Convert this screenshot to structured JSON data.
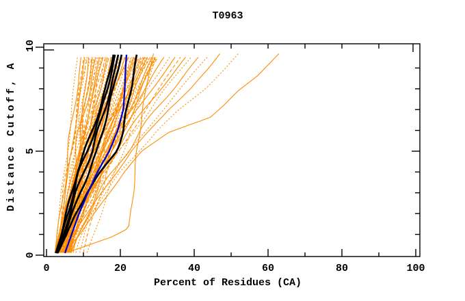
{
  "page": {
    "background": "#FFFFFF"
  },
  "chart_data": {
    "type": "line",
    "title": "T0963",
    "xlabel": "Percent of Residues (CA)",
    "ylabel": "Distance Cutoff, A",
    "xlim": [
      0,
      101.5
    ],
    "ylim": [
      0,
      10.2
    ],
    "grid": false,
    "legend": "none",
    "x_ticks_major": [
      0,
      20,
      40,
      60,
      80,
      100
    ],
    "x_ticks_minor": [
      10,
      30,
      50,
      70,
      90
    ],
    "x_tick_labels": [
      "0",
      "20",
      "40",
      "60",
      "80",
      "100"
    ],
    "y_ticks_major": [
      0,
      5,
      10
    ],
    "y_ticks_minor": [
      1,
      2,
      3,
      4,
      6,
      7,
      8,
      9
    ],
    "y_tick_labels": [
      "0",
      "5",
      "10"
    ],
    "colors": {
      "model_curves": "#FF8C00",
      "highlight_curves": "#000000",
      "reference_curve": "#0000CC",
      "axis": "#000000"
    },
    "series_groups": {
      "orange_models": {
        "color": "#FF8C00",
        "stroke_width": 1.1,
        "note": "many thin model curves, mix of solid and dashed; x percent of CA residues within distance cutoff y",
        "band_format": [
          "x_at_bottom",
          "x_at_top",
          "shape_exponent",
          "wiggle_amplitude",
          "dash_style"
        ],
        "band": [
          [
            2.4,
            10.5,
            0.9,
            0.15,
            0
          ],
          [
            3.8,
            12.9,
            0.97,
            0.33,
            1
          ],
          [
            5.3,
            15.3,
            1.04,
            0.51,
            2
          ],
          [
            6.7,
            17.7,
            1.11,
            0.69,
            0
          ],
          [
            3.6,
            20.1,
            1.18,
            0.15,
            1
          ],
          [
            5.0,
            22.5,
            1.25,
            0.33,
            2
          ],
          [
            6.4,
            24.9,
            1.32,
            0.51,
            0
          ],
          [
            3.3,
            27.3,
            0.9,
            0.69,
            1
          ],
          [
            4.7,
            29.7,
            0.97,
            0.15,
            2
          ],
          [
            6.1,
            11.5,
            1.04,
            0.33,
            0
          ],
          [
            3.0,
            13.9,
            1.11,
            0.51,
            1
          ],
          [
            4.4,
            16.3,
            1.18,
            0.69,
            2
          ],
          [
            5.9,
            18.7,
            1.25,
            0.15,
            0
          ],
          [
            2.7,
            21.1,
            1.32,
            0.33,
            1
          ],
          [
            4.1,
            23.5,
            0.9,
            0.51,
            2
          ],
          [
            5.6,
            25.9,
            0.97,
            0.69,
            0
          ],
          [
            2.4,
            28.3,
            1.04,
            0.15,
            1
          ],
          [
            3.8,
            30.7,
            1.11,
            0.33,
            2
          ],
          [
            5.3,
            12.6,
            1.18,
            0.51,
            0
          ],
          [
            6.7,
            14.9,
            1.25,
            0.69,
            1
          ],
          [
            3.6,
            17.3,
            1.32,
            0.15,
            2
          ],
          [
            5.0,
            19.7,
            0.9,
            0.33,
            0
          ],
          [
            6.4,
            22.1,
            0.97,
            0.51,
            1
          ],
          [
            3.3,
            24.5,
            1.04,
            0.69,
            2
          ],
          [
            4.7,
            26.9,
            1.11,
            0.15,
            0
          ],
          [
            6.1,
            29.3,
            1.18,
            0.33,
            1
          ],
          [
            3.0,
            11.2,
            1.25,
            0.51,
            2
          ],
          [
            4.4,
            13.6,
            1.32,
            0.69,
            0
          ],
          [
            5.9,
            16.0,
            0.9,
            0.15,
            1
          ],
          [
            2.7,
            18.4,
            0.97,
            0.33,
            2
          ],
          [
            4.1,
            20.8,
            1.04,
            0.51,
            0
          ],
          [
            5.6,
            23.2,
            1.11,
            0.69,
            1
          ],
          [
            2.4,
            25.6,
            1.18,
            0.15,
            2
          ],
          [
            3.8,
            28.0,
            1.25,
            0.33,
            0
          ],
          [
            5.3,
            30.4,
            1.32,
            0.51,
            1
          ],
          [
            6.7,
            12.2,
            0.9,
            0.69,
            2
          ],
          [
            3.6,
            14.6,
            0.97,
            0.15,
            0
          ],
          [
            5.0,
            17.0,
            1.04,
            0.33,
            1
          ],
          [
            6.4,
            19.4,
            1.11,
            0.51,
            2
          ],
          [
            3.3,
            21.8,
            1.18,
            0.69,
            0
          ],
          [
            4.7,
            24.2,
            1.25,
            0.15,
            1
          ],
          [
            6.1,
            26.6,
            1.32,
            0.33,
            2
          ],
          [
            3.0,
            29.0,
            0.9,
            0.51,
            0
          ],
          [
            4.4,
            10.8,
            0.97,
            0.69,
            1
          ],
          [
            5.9,
            13.2,
            1.04,
            0.15,
            2
          ],
          [
            2.7,
            15.6,
            1.11,
            0.33,
            0
          ],
          [
            4.1,
            18.0,
            1.18,
            0.51,
            1
          ],
          [
            5.6,
            20.4,
            1.25,
            0.69,
            2
          ],
          [
            2.4,
            22.8,
            1.32,
            0.15,
            0
          ],
          [
            3.8,
            25.2,
            0.9,
            0.33,
            1
          ],
          [
            5.3,
            27.6,
            0.97,
            0.51,
            2
          ],
          [
            6.7,
            30.0,
            1.04,
            0.69,
            0
          ],
          [
            3.6,
            11.9,
            1.11,
            0.15,
            1
          ],
          [
            5.0,
            14.3,
            1.18,
            0.33,
            2
          ],
          [
            6.4,
            16.7,
            1.25,
            0.51,
            0
          ],
          [
            3.3,
            19.1,
            1.32,
            0.69,
            1
          ],
          [
            4.7,
            21.4,
            0.9,
            0.15,
            2
          ],
          [
            6.1,
            23.9,
            0.97,
            0.33,
            0
          ],
          [
            3.0,
            26.2,
            1.04,
            0.51,
            1
          ],
          [
            4.4,
            28.6,
            1.11,
            0.69,
            2
          ],
          [
            2.2,
            8.5,
            0.95,
            0.3,
            1
          ],
          [
            2.3,
            9.5,
            1.0,
            0.4,
            0
          ],
          [
            2.5,
            10.2,
            0.9,
            0.3,
            2
          ],
          [
            3.5,
            32.5,
            1.2,
            0.5,
            0
          ],
          [
            4.2,
            34.0,
            1.25,
            0.4,
            1
          ],
          [
            5.0,
            35.5,
            1.3,
            0.6,
            0
          ],
          [
            5.8,
            37.0,
            1.2,
            0.3,
            2
          ],
          [
            4.6,
            38.5,
            1.3,
            0.5,
            0
          ],
          [
            6.5,
            40.0,
            1.35,
            0.4,
            1
          ],
          [
            7.2,
            42.0,
            1.3,
            0.6,
            0
          ],
          [
            8.0,
            44.5,
            1.35,
            0.4,
            1
          ],
          [
            9.0,
            24.0,
            1.05,
            0.3,
            1
          ],
          [
            10.0,
            27.0,
            1.1,
            0.4,
            2
          ],
          [
            11.0,
            30.0,
            1.0,
            0.3,
            1
          ]
        ],
        "outliers_xy": [
          [
            [
              5,
              0.15
            ],
            [
              9,
              1
            ],
            [
              13,
              2
            ],
            [
              17,
              3
            ],
            [
              21,
              4
            ],
            [
              26,
              5
            ],
            [
              33,
              5.9
            ],
            [
              39,
              6.3
            ],
            [
              44,
              6.6
            ],
            [
              48,
              7.2
            ],
            [
              52,
              7.9
            ],
            [
              57,
              8.6
            ],
            [
              63,
              9.7
            ]
          ],
          [
            [
              4.5,
              0.15
            ],
            [
              8,
              1
            ],
            [
              12,
              2
            ],
            [
              16,
              3
            ],
            [
              20,
              4
            ],
            [
              25,
              5
            ],
            [
              30,
              6
            ],
            [
              36,
              7
            ],
            [
              43,
              8
            ],
            [
              48,
              8.9
            ],
            [
              52,
              9.7
            ]
          ],
          [
            [
              4,
              0.15
            ],
            [
              7,
              1
            ],
            [
              11,
              2
            ],
            [
              15,
              3
            ],
            [
              19,
              4
            ],
            [
              23,
              5
            ],
            [
              28,
              6
            ],
            [
              33,
              7
            ],
            [
              39,
              8
            ],
            [
              44,
              9
            ],
            [
              47,
              9.7
            ]
          ],
          [
            [
              6,
              0.15
            ],
            [
              18,
              0.9
            ],
            [
              22.3,
              1.3
            ],
            [
              23.5,
              3
            ],
            [
              24.5,
              5
            ],
            [
              26,
              7
            ],
            [
              28,
              9
            ],
            [
              29,
              9.7
            ]
          ]
        ]
      },
      "black_highlight": {
        "color": "#000000",
        "stroke_width": 2.7,
        "curves_xy": [
          [
            [
              2.5,
              0.1
            ],
            [
              4.0,
              1
            ],
            [
              5.4,
              2
            ],
            [
              6.8,
              3
            ],
            [
              8.2,
              4
            ],
            [
              10.4,
              5
            ],
            [
              12.4,
              6
            ],
            [
              14.3,
              7
            ],
            [
              16.0,
              8
            ],
            [
              17.4,
              9
            ],
            [
              18.2,
              9.7
            ]
          ],
          [
            [
              2.6,
              0.1
            ],
            [
              4.2,
              1
            ],
            [
              5.8,
              2
            ],
            [
              7.2,
              3
            ],
            [
              8.8,
              4
            ],
            [
              11.0,
              5
            ],
            [
              13.0,
              6
            ],
            [
              15.0,
              7
            ],
            [
              16.5,
              8
            ],
            [
              17.8,
              9
            ],
            [
              18.6,
              9.7
            ]
          ],
          [
            [
              2.7,
              0.1
            ],
            [
              4.6,
              1
            ],
            [
              6.3,
              2
            ],
            [
              8.0,
              3
            ],
            [
              10.0,
              4
            ],
            [
              12.3,
              5
            ],
            [
              14.0,
              6
            ],
            [
              15.8,
              7
            ],
            [
              17.3,
              8
            ],
            [
              18.7,
              9
            ],
            [
              19.5,
              9.7
            ]
          ],
          [
            [
              2.8,
              0.1
            ],
            [
              5.0,
              1
            ],
            [
              7.0,
              2
            ],
            [
              9.0,
              3
            ],
            [
              11.5,
              4
            ],
            [
              13.8,
              5
            ],
            [
              15.2,
              6
            ],
            [
              16.6,
              7
            ],
            [
              18.1,
              8
            ],
            [
              19.5,
              9
            ],
            [
              20.4,
              9.7
            ]
          ],
          [
            [
              3.0,
              0.1
            ],
            [
              5.5,
              1
            ],
            [
              7.8,
              2
            ],
            [
              11.0,
              3
            ],
            [
              14.8,
              4
            ],
            [
              18.8,
              5
            ],
            [
              20.8,
              6
            ],
            [
              21.8,
              7
            ],
            [
              22.9,
              8
            ],
            [
              23.8,
              9
            ],
            [
              24.5,
              9.7
            ]
          ]
        ]
      },
      "blue_reference": {
        "color": "#0000CC",
        "stroke_width": 2.3,
        "curve_xy": [
          [
            5.0,
            0.1
          ],
          [
            6.8,
            1
          ],
          [
            8.8,
            2
          ],
          [
            11.2,
            3
          ],
          [
            13.8,
            4
          ],
          [
            17.0,
            5
          ],
          [
            19.3,
            6
          ],
          [
            20.8,
            7
          ],
          [
            21.2,
            8
          ],
          [
            21.4,
            9
          ],
          [
            21.7,
            9.7
          ]
        ]
      }
    }
  }
}
